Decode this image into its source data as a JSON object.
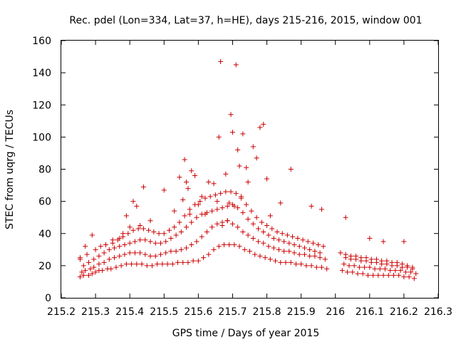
{
  "chart_data": {
    "type": "scatter",
    "title": "Rec. pdel (Lon=334, Lat=37, h=HE), days 215-216, 2015, window 001",
    "xlabel": "GPS time / Days of year 2015",
    "ylabel": "STEC from uqrg / TECUs",
    "xlim": [
      215.2,
      216.3
    ],
    "ylim": [
      0,
      160
    ],
    "xticks": [
      215.2,
      215.3,
      215.4,
      215.5,
      215.6,
      215.7,
      215.8,
      215.9,
      216,
      216.1,
      216.2,
      216.3
    ],
    "xtick_labels": [
      "215.2",
      "215.3",
      "215.4",
      "215.5",
      "215.6",
      "215.7",
      "215.8",
      "215.9",
      "216",
      "216.1",
      "216.2",
      "216.3"
    ],
    "yticks": [
      0,
      20,
      40,
      60,
      80,
      100,
      120,
      140,
      160
    ],
    "ytick_labels": [
      "0",
      "20",
      "40",
      "60",
      "80",
      "100",
      "120",
      "140",
      "160"
    ],
    "grid": false,
    "legend": "none",
    "marker": "plus",
    "color": "#cc0000",
    "series": [
      {
        "x": [
          215.255,
          215.265,
          215.28,
          215.29,
          215.3,
          215.31,
          215.32,
          215.335,
          215.345,
          215.36,
          215.375,
          215.39,
          215.405,
          215.42,
          215.435,
          215.45,
          215.465,
          215.48,
          215.495,
          215.51,
          215.525,
          215.54,
          215.555,
          215.57,
          215.585,
          215.6,
          215.615,
          215.63,
          215.645,
          215.66,
          215.675,
          215.69,
          215.705,
          215.72,
          215.735,
          215.75,
          215.765,
          215.78,
          215.795,
          215.81,
          215.825,
          215.84,
          215.855,
          215.87,
          215.885,
          215.9,
          215.915,
          215.93,
          215.945,
          215.96,
          215.975,
          216.02,
          216.035,
          216.05,
          216.065,
          216.08,
          216.095,
          216.11,
          216.125,
          216.14,
          216.155,
          216.17,
          216.185,
          216.2,
          216.215,
          216.23
        ],
        "y": [
          13,
          14,
          14,
          15,
          16,
          17,
          17,
          18,
          18,
          19,
          20,
          21,
          21,
          21,
          21,
          20,
          20,
          21,
          21,
          21,
          21,
          22,
          22,
          22,
          23,
          23,
          25,
          27,
          30,
          32,
          33,
          33,
          33,
          32,
          30,
          29,
          27,
          26,
          25,
          24,
          23,
          22,
          22,
          22,
          21,
          21,
          20,
          20,
          19,
          19,
          18,
          17,
          16,
          16,
          15,
          15,
          14,
          14,
          14,
          14,
          14,
          14,
          14,
          13,
          13,
          12
        ]
      },
      {
        "x": [
          215.26,
          215.27,
          215.285,
          215.295,
          215.31,
          215.325,
          215.34,
          215.355,
          215.37,
          215.385,
          215.4,
          215.415,
          215.43,
          215.445,
          215.46,
          215.475,
          215.49,
          215.505,
          215.52,
          215.535,
          215.55,
          215.565,
          215.58,
          215.595,
          215.61,
          215.625,
          215.64,
          215.655,
          215.67,
          215.685,
          215.7,
          215.715,
          215.73,
          215.745,
          215.76,
          215.775,
          215.79,
          215.805,
          215.82,
          215.835,
          215.85,
          215.865,
          215.88,
          215.895,
          215.91,
          215.925,
          215.94,
          215.955,
          215.97,
          216.025,
          216.04,
          216.055,
          216.07,
          216.085,
          216.1,
          216.115,
          216.13,
          216.145,
          216.16,
          216.175,
          216.19,
          216.205,
          216.22,
          216.235
        ],
        "y": [
          16,
          17,
          18,
          19,
          21,
          22,
          24,
          25,
          26,
          27,
          28,
          28,
          28,
          27,
          26,
          26,
          27,
          28,
          29,
          29,
          30,
          31,
          33,
          35,
          38,
          41,
          44,
          46,
          47,
          48,
          46,
          44,
          41,
          39,
          37,
          35,
          34,
          32,
          31,
          30,
          29,
          29,
          28,
          27,
          27,
          26,
          26,
          25,
          24,
          21,
          20,
          20,
          19,
          19,
          19,
          18,
          18,
          18,
          17,
          17,
          17,
          16,
          16,
          15
        ]
      },
      {
        "x": [
          215.265,
          215.28,
          215.295,
          215.31,
          215.325,
          215.34,
          215.355,
          215.37,
          215.385,
          215.4,
          215.415,
          215.43,
          215.445,
          215.46,
          215.475,
          215.49,
          215.505,
          215.52,
          215.535,
          215.55,
          215.565,
          215.58,
          215.595,
          215.61,
          215.625,
          215.64,
          215.655,
          215.67,
          215.685,
          215.7,
          215.715,
          215.73,
          215.745,
          215.76,
          215.775,
          215.79,
          215.805,
          215.82,
          215.835,
          215.85,
          215.865,
          215.88,
          215.895,
          215.91,
          215.925,
          215.94,
          215.955,
          216.03,
          216.045,
          216.06,
          216.075,
          216.09,
          216.105,
          216.12,
          216.135,
          216.15,
          216.165,
          216.18,
          216.195,
          216.21,
          216.225
        ],
        "y": [
          20,
          22,
          24,
          26,
          28,
          30,
          31,
          32,
          33,
          34,
          35,
          36,
          36,
          35,
          34,
          34,
          35,
          37,
          39,
          41,
          44,
          47,
          50,
          52,
          53,
          54,
          55,
          56,
          57,
          58,
          56,
          53,
          49,
          46,
          43,
          41,
          39,
          37,
          36,
          35,
          34,
          33,
          32,
          31,
          30,
          29,
          28,
          25,
          24,
          24,
          23,
          23,
          22,
          22,
          21,
          21,
          20,
          20,
          19,
          19,
          18
        ]
      },
      {
        "x": [
          215.255,
          215.275,
          215.3,
          215.315,
          215.33,
          215.35,
          215.365,
          215.38,
          215.395,
          215.41,
          215.425,
          215.44,
          215.455,
          215.47,
          215.485,
          215.5,
          215.515,
          215.53,
          215.545,
          215.56,
          215.575,
          215.59,
          215.605,
          215.62,
          215.635,
          215.65,
          215.665,
          215.68,
          215.695,
          215.71,
          215.725,
          215.74,
          215.755,
          215.77,
          215.785,
          215.8,
          215.815,
          215.83,
          215.845,
          215.86,
          215.875,
          215.89,
          215.905,
          215.92,
          215.935,
          215.95,
          215.965,
          216.015,
          216.03,
          216.045,
          216.06,
          216.075,
          216.09,
          216.105,
          216.12,
          216.135,
          216.15,
          216.165,
          216.18,
          216.195,
          216.21,
          216.225
        ],
        "y": [
          24,
          27,
          30,
          32,
          33,
          34,
          36,
          38,
          40,
          42,
          43,
          43,
          42,
          41,
          40,
          40,
          42,
          44,
          47,
          51,
          55,
          58,
          60,
          62,
          63,
          64,
          65,
          66,
          66,
          65,
          62,
          58,
          54,
          50,
          47,
          45,
          43,
          41,
          40,
          39,
          38,
          37,
          36,
          35,
          34,
          33,
          32,
          28,
          27,
          26,
          26,
          25,
          25,
          24,
          24,
          23,
          23,
          22,
          22,
          21,
          20,
          19
        ]
      },
      {
        "x": [
          215.255,
          215.27,
          215.29,
          215.33,
          215.35,
          215.37,
          215.38,
          215.39,
          215.4,
          215.41,
          215.42,
          215.43,
          215.44,
          215.46,
          215.5,
          215.53,
          215.545,
          215.555,
          215.56,
          215.565,
          215.57,
          215.575,
          215.58,
          215.59,
          215.6,
          215.61,
          215.62,
          215.63,
          215.645,
          215.655,
          215.66,
          215.665,
          215.67,
          215.68,
          215.685,
          215.69,
          215.695,
          215.7,
          215.705,
          215.71,
          215.715,
          215.72,
          215.725,
          215.73,
          215.74,
          215.745,
          215.76,
          215.77,
          215.78,
          215.79,
          215.8,
          215.81,
          215.84,
          215.87,
          215.93,
          215.96,
          216.03,
          216.1,
          216.14,
          216.2
        ],
        "y": [
          25,
          32,
          39,
          33,
          36,
          37,
          40,
          51,
          44,
          60,
          57,
          45,
          69,
          48,
          67,
          54,
          75,
          61,
          86,
          72,
          68,
          52,
          79,
          76,
          58,
          63,
          52,
          72,
          71,
          60,
          100,
          147,
          45,
          77,
          48,
          59,
          114,
          103,
          57,
          145,
          92,
          82,
          63,
          102,
          81,
          72,
          94,
          87,
          106,
          108,
          74,
          51,
          59,
          80,
          57,
          55,
          50,
          37,
          35,
          35
        ]
      }
    ]
  }
}
